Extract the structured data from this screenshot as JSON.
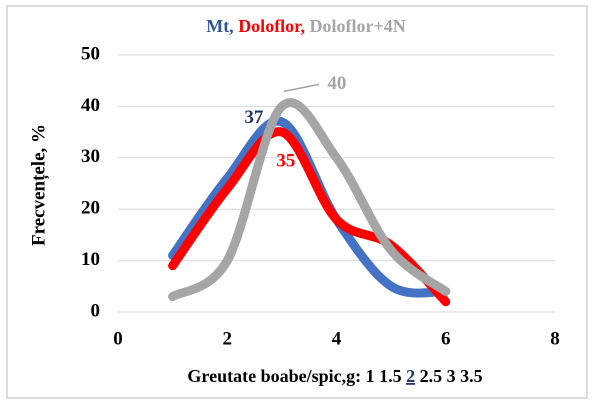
{
  "chart_data": {
    "type": "line",
    "title": [
      "Mt, ",
      "Doloflor, ",
      "Doloflor+4N"
    ],
    "ylabel": "Frecvențele, %",
    "xlabel": [
      "Greutate boabe/spic,g: 1 1.5 ",
      "2",
      " 2.5 3 3.5"
    ],
    "x": [
      1,
      2,
      3,
      4,
      5,
      6
    ],
    "series": [
      {
        "name": "Mt",
        "color": "#4472c4",
        "values": [
          11,
          26,
          37,
          18,
          5,
          4
        ],
        "label_index": 2
      },
      {
        "name": "Doloflor",
        "color": "#ff0000",
        "values": [
          9,
          24,
          35,
          18,
          13,
          2
        ],
        "label_index": 2
      },
      {
        "name": "Doloflor+4N",
        "color": "#a5a5a5",
        "values": [
          3,
          10,
          40,
          30,
          12,
          4
        ],
        "label_index": 2
      }
    ],
    "xlim": [
      0,
      8
    ],
    "xticks": [
      0,
      2,
      4,
      6,
      8
    ],
    "ylim": [
      0,
      50
    ],
    "yticks": [
      0,
      10,
      20,
      30,
      40,
      50
    ],
    "grid": true,
    "smooth": true
  }
}
